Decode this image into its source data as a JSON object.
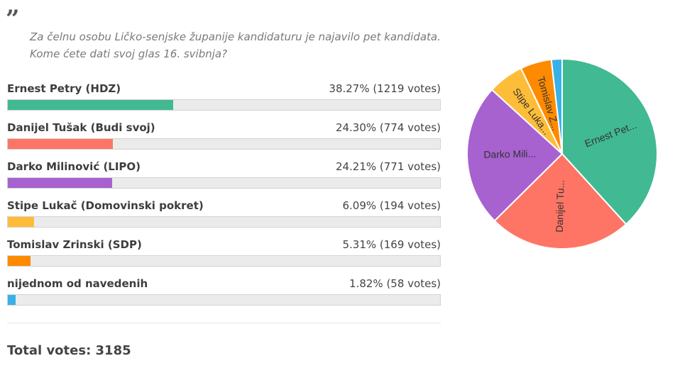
{
  "poll": {
    "quote_icon": "quote-icon",
    "question_line1": "Za čelnu osobu Ličko-senjske županije kandidaturu je najavilo pet kandidata.",
    "question_line2": "Kome ćete dati svoj glas 16. svibnja?",
    "options": [
      {
        "label": "Ernest Petry (HDZ)",
        "stat": "38.27% (1219 votes)",
        "percent": 38.27,
        "color": "#41b992",
        "pie_label": "Ernest Pet..."
      },
      {
        "label": "Danijel Tušak (Budi svoj)",
        "stat": "24.30% (774 votes)",
        "percent": 24.3,
        "color": "#fe7566",
        "pie_label": "Danijel Tu..."
      },
      {
        "label": "Darko Milinović (LIPO)",
        "stat": "24.21% (771 votes)",
        "percent": 24.21,
        "color": "#a762d0",
        "pie_label": "Darko Mili..."
      },
      {
        "label": "Stipe Lukač (Domovinski pokret)",
        "stat": "6.09% (194 votes)",
        "percent": 6.09,
        "color": "#febd39",
        "pie_label": "Stipe Luka..."
      },
      {
        "label": "Tomislav Zrinski (SDP)",
        "stat": "5.31% (169 votes)",
        "percent": 5.31,
        "color": "#fe8a00",
        "pie_label": "Tomislav Z..."
      },
      {
        "label": "nijednom od navedenih",
        "stat": "1.82% (58 votes)",
        "percent": 1.82,
        "color": "#39b1e6",
        "pie_label": ""
      }
    ],
    "total": "Total votes: 3185"
  },
  "chart_data": {
    "type": "pie",
    "categories": [
      "Ernest Petry (HDZ)",
      "Danijel Tušak (Budi svoj)",
      "Darko Milinović (LIPO)",
      "Stipe Lukač (Domovinski pokret)",
      "Tomislav Zrinski (SDP)",
      "nijednom od navedenih"
    ],
    "values": [
      1219,
      774,
      771,
      194,
      169,
      58
    ]
  }
}
